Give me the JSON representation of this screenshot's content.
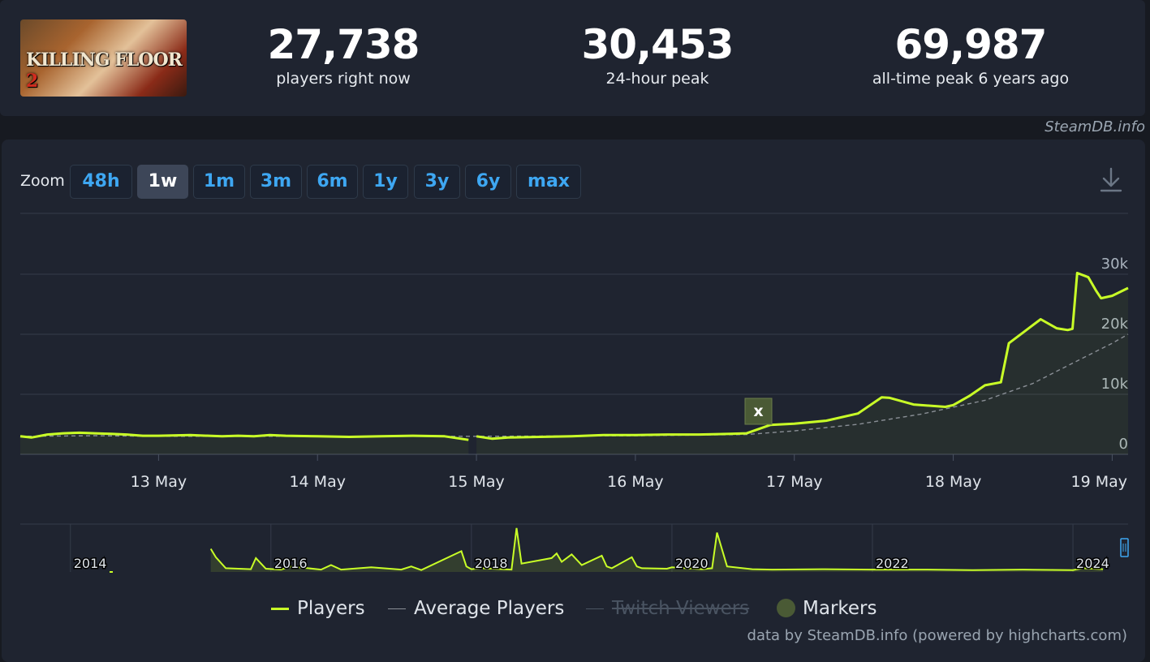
{
  "game": {
    "logo_text": "KILLING FLOOR",
    "logo_num": "2"
  },
  "stats": [
    {
      "value": "27,738",
      "label": "players right now"
    },
    {
      "value": "30,453",
      "label": "24-hour peak"
    },
    {
      "value": "69,987",
      "label": "all-time peak 6 years ago"
    }
  ],
  "credit_top": "SteamDB.info",
  "zoom": {
    "label": "Zoom",
    "buttons": [
      "48h",
      "1w",
      "1m",
      "3m",
      "6m",
      "1y",
      "3y",
      "6y",
      "max"
    ],
    "active": "1w"
  },
  "legend": {
    "players": "Players",
    "average": "Average Players",
    "twitch": "Twitch Viewers",
    "markers": "Markers"
  },
  "credit_bottom": "data by SteamDB.info (powered by highcharts.com)",
  "colors": {
    "players": "#c9ff27",
    "average": "#8a8f96",
    "grid": "#353c4a",
    "marker": "#4a5a35"
  },
  "icons": {
    "download": "download-icon"
  },
  "chart_data": {
    "type": "line",
    "title": "",
    "xlabel": "",
    "ylabel": "",
    "x_ticks": [
      "13 May",
      "14 May",
      "15 May",
      "16 May",
      "17 May",
      "18 May",
      "19 May"
    ],
    "y_ticks": [
      "0",
      "10k",
      "20k",
      "30k"
    ],
    "ylim": [
      0,
      30000
    ],
    "grid": true,
    "legend_position": "bottom",
    "marker_label": "x",
    "series": [
      {
        "name": "Players",
        "x": [
          12.13,
          12.2,
          12.3,
          12.4,
          12.5,
          12.6,
          12.7,
          12.8,
          12.9,
          13.0,
          13.2,
          13.4,
          13.5,
          13.6,
          13.7,
          13.8,
          14.0,
          14.2,
          14.4,
          14.6,
          14.8,
          14.95,
          15.0,
          15.1,
          15.2,
          15.4,
          15.6,
          15.8,
          16.0,
          16.2,
          16.4,
          16.6,
          16.7,
          16.85,
          17.0,
          17.2,
          17.4,
          17.55,
          17.6,
          17.75,
          17.95,
          18.0,
          18.1,
          18.2,
          18.3,
          18.35,
          18.45,
          18.55,
          18.65,
          18.72,
          18.75,
          18.78,
          18.85,
          18.9,
          18.93,
          19.0,
          19.1
        ],
        "y": [
          3000,
          2800,
          3300,
          3500,
          3600,
          3500,
          3400,
          3300,
          3100,
          3100,
          3200,
          3000,
          3100,
          3000,
          3200,
          3100,
          3000,
          2900,
          3000,
          3100,
          3000,
          2400,
          3000,
          2600,
          2800,
          2900,
          3000,
          3200,
          3200,
          3300,
          3300,
          3400,
          3500,
          4900,
          5100,
          5600,
          6800,
          9500,
          9400,
          8300,
          7900,
          8200,
          9700,
          11500,
          12000,
          18500,
          20500,
          22500,
          21000,
          20700,
          20900,
          30200,
          29500,
          27200,
          26000,
          26400,
          27700
        ]
      },
      {
        "name": "Average Players",
        "x": [
          12.13,
          12.6,
          13.0,
          14.0,
          15.0,
          16.0,
          16.7,
          17.0,
          17.4,
          17.8,
          18.2,
          18.5,
          18.7,
          19.0,
          19.1
        ],
        "y": [
          3000,
          3100,
          3000,
          3000,
          3000,
          3100,
          3300,
          3900,
          5000,
          6700,
          9000,
          11800,
          14500,
          18500,
          20000
        ]
      }
    ],
    "navigator": {
      "x_ticks": [
        "2014",
        "2016",
        "2018",
        "2020",
        "2022",
        "2024"
      ],
      "series": [
        {
          "name": "Players",
          "x": [
            2015.4,
            2015.45,
            2015.55,
            2015.8,
            2015.85,
            2015.95,
            2016.1,
            2016.2,
            2016.5,
            2016.6,
            2016.7,
            2017.0,
            2017.3,
            2017.4,
            2017.5,
            2017.9,
            2017.95,
            2018.0,
            2018.1,
            2018.4,
            2018.45,
            2018.5,
            2018.8,
            2018.85,
            2018.9,
            2019.0,
            2019.1,
            2019.3,
            2019.35,
            2019.4,
            2019.6,
            2019.65,
            2019.7,
            2019.95,
            2020.0,
            2020.3,
            2020.4,
            2020.45,
            2020.55,
            2020.8,
            2021.0,
            2021.5,
            2022.0,
            2022.5,
            2023.0,
            2023.5,
            2024.0,
            2024.1,
            2024.3
          ],
          "y": [
            0.5,
            0.32,
            0.08,
            0.06,
            0.3,
            0.07,
            0.05,
            0.12,
            0.05,
            0.15,
            0.05,
            0.1,
            0.05,
            0.12,
            0.04,
            0.45,
            0.12,
            0.06,
            0.08,
            0.05,
            0.95,
            0.18,
            0.3,
            0.4,
            0.22,
            0.38,
            0.15,
            0.35,
            0.12,
            0.08,
            0.32,
            0.12,
            0.08,
            0.07,
            0.1,
            0.06,
            0.08,
            0.85,
            0.12,
            0.06,
            0.05,
            0.06,
            0.05,
            0.05,
            0.04,
            0.05,
            0.04,
            0.08,
            0.06
          ]
        }
      ]
    }
  }
}
